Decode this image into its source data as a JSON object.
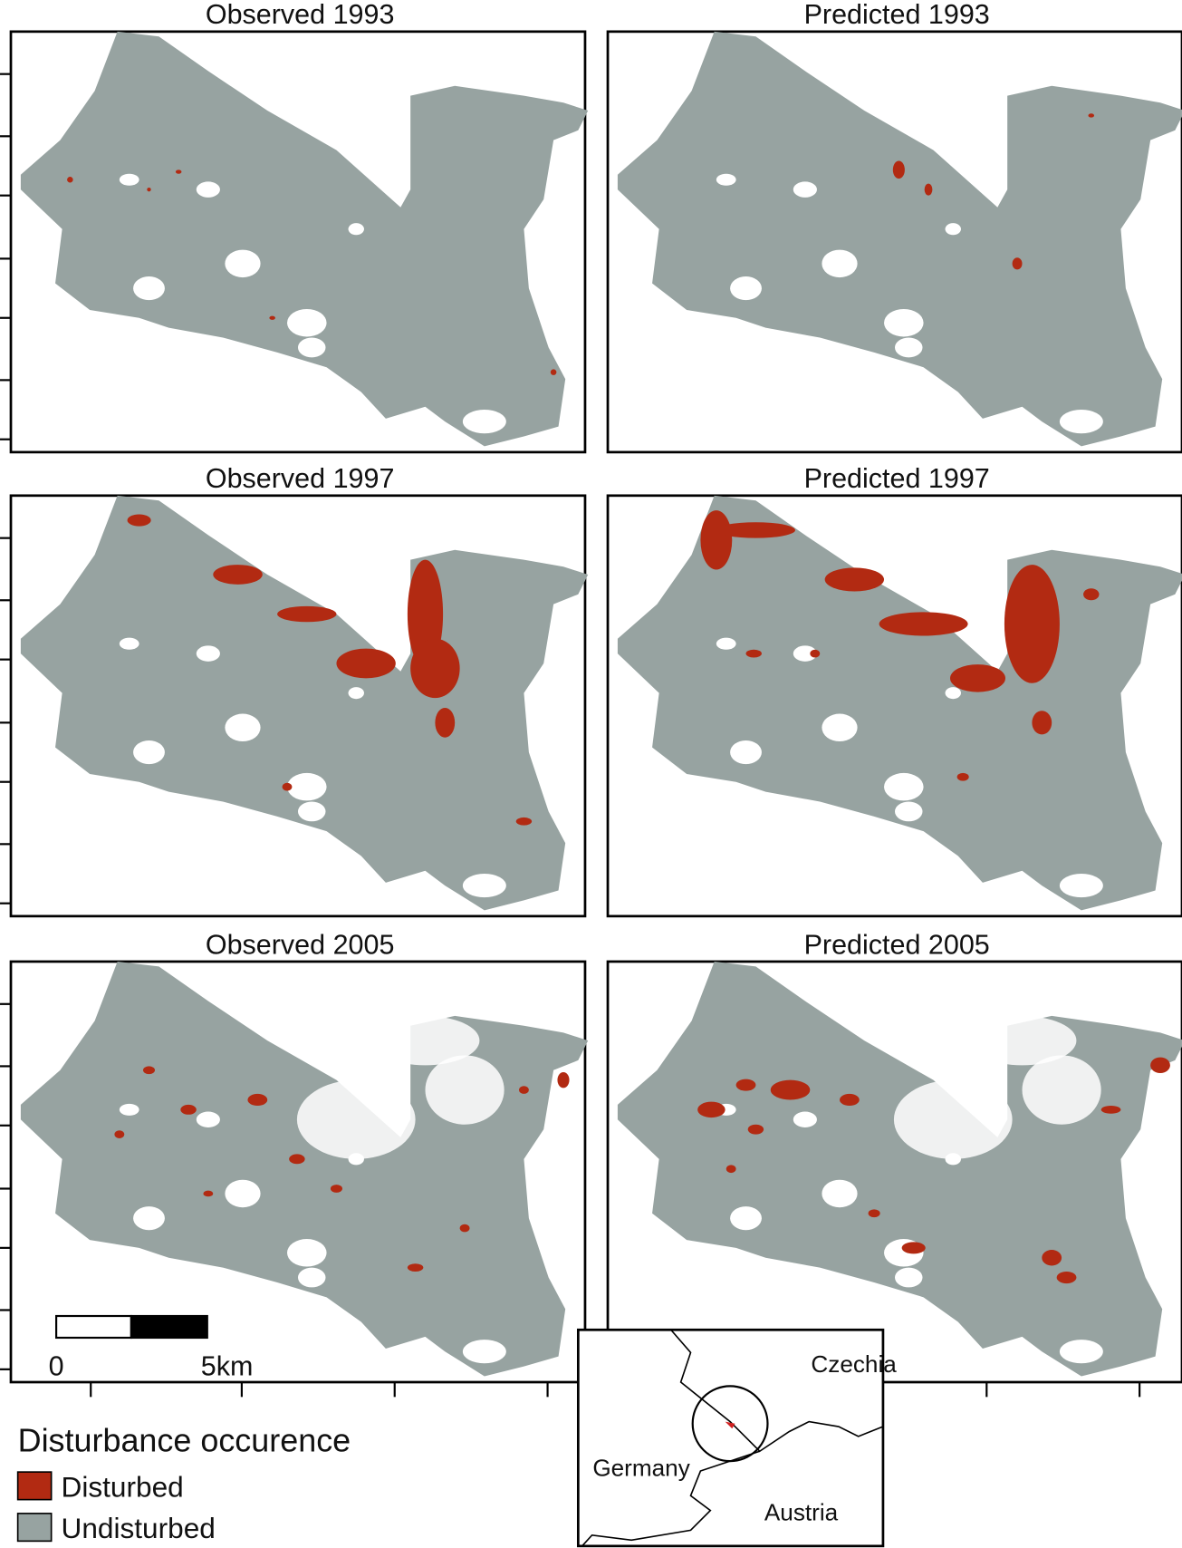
{
  "panels": [
    {
      "title": "Observed 1993"
    },
    {
      "title": "Predicted 1993"
    },
    {
      "title": "Observed 1997"
    },
    {
      "title": "Predicted 1997"
    },
    {
      "title": "Observed 2005"
    },
    {
      "title": "Predicted 2005"
    }
  ],
  "scale_bar": {
    "start_label": "0",
    "end_label": "5km"
  },
  "legend": {
    "title": "Disturbance occurence",
    "items": [
      {
        "label": "Disturbed",
        "color": "#b22a12"
      },
      {
        "label": "Undisturbed",
        "color": "#97a3a1"
      }
    ]
  },
  "inset": {
    "labels": [
      "Czechia",
      "Germany",
      "Austria"
    ]
  }
}
